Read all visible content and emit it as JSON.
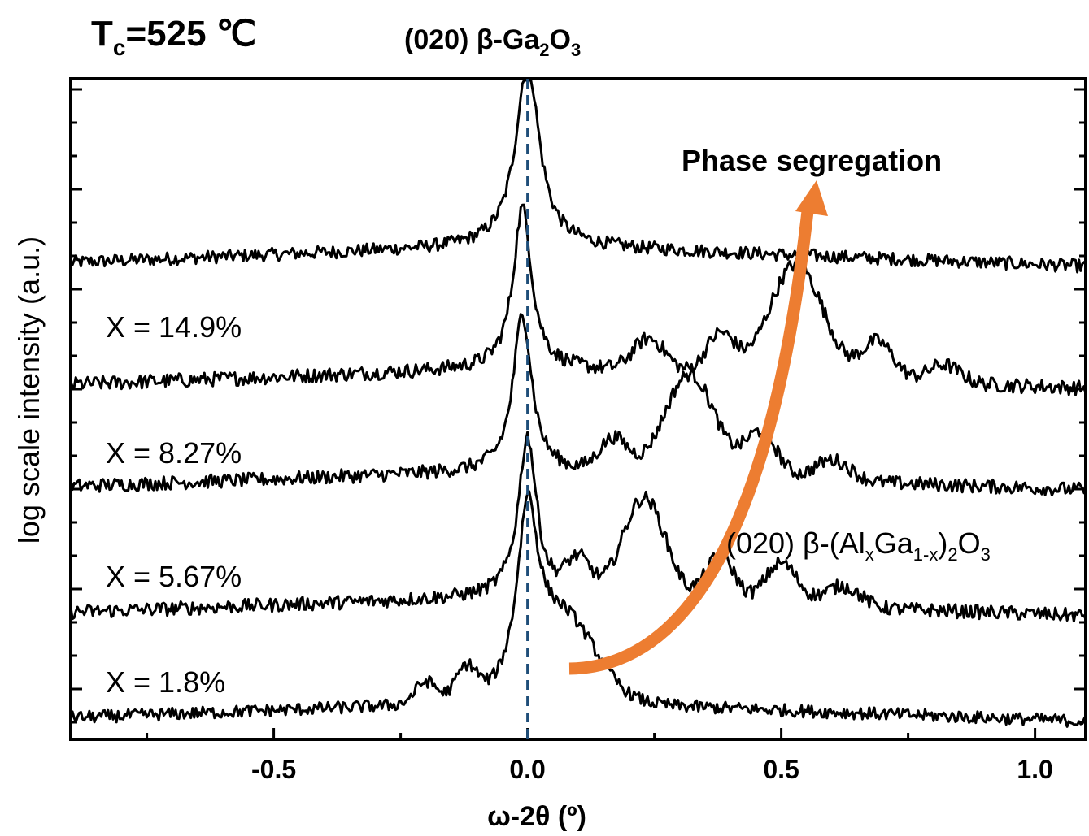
{
  "header": {
    "tc_label": "T",
    "tc_sub": "c",
    "tc_value": "=525 ℃",
    "ref_prefix": "(020) β-Ga",
    "ref_sub1": "2",
    "ref_mid": "O",
    "ref_sub2": "3"
  },
  "annotation": {
    "arrow_label": "Phase segregation",
    "arrow_color": "#ED7D31",
    "film_prefix": "(020) β-(Al",
    "film_sub1": "x",
    "film_mid1": "Ga",
    "film_sub2": "1-x",
    "film_mid2": ")",
    "film_sub3": "2",
    "film_mid3": "O",
    "film_sub4": "3"
  },
  "chart_data": {
    "type": "line",
    "xlabel": "ω-2θ (º)",
    "ylabel": "log scale intensity (a.u.)",
    "xlim": [
      -0.9,
      1.1
    ],
    "x_ticks": [
      -0.5,
      0.0,
      0.5,
      1.0
    ],
    "x_tick_labels": [
      "-0.5",
      "0.0",
      "0.5",
      "1.0"
    ],
    "reference_line_x": 0.0,
    "reference_line_color": "#1F4E79",
    "series": [
      {
        "name": "",
        "peaks": [
          {
            "x": 0.0,
            "height": 0.98,
            "width": 0.028
          }
        ],
        "fringes": [],
        "baseline": 0.0,
        "noise": 0.035
      },
      {
        "name": "X = 14.9%",
        "peaks": [
          {
            "x": -0.01,
            "height": 0.88,
            "width": 0.022
          }
        ],
        "fringes": [
          {
            "x": 0.24,
            "height": 0.18,
            "width": 0.045
          },
          {
            "x": 0.38,
            "height": 0.22,
            "width": 0.04
          },
          {
            "x": 0.53,
            "height": 0.62,
            "width": 0.075
          },
          {
            "x": 0.69,
            "height": 0.21,
            "width": 0.045
          },
          {
            "x": 0.82,
            "height": 0.1,
            "width": 0.045
          }
        ],
        "baseline": 0.0,
        "noise": 0.04
      },
      {
        "name": "X = 8.27%",
        "peaks": [
          {
            "x": -0.01,
            "height": 0.9,
            "width": 0.022
          }
        ],
        "fringes": [
          {
            "x": 0.17,
            "height": 0.19,
            "width": 0.04
          },
          {
            "x": 0.32,
            "height": 0.58,
            "width": 0.07
          },
          {
            "x": 0.46,
            "height": 0.26,
            "width": 0.045
          },
          {
            "x": 0.6,
            "height": 0.12,
            "width": 0.05
          }
        ],
        "baseline": 0.0,
        "noise": 0.04
      },
      {
        "name": "X = 5.67%",
        "peaks": [
          {
            "x": 0.0,
            "height": 0.92,
            "width": 0.022
          }
        ],
        "fringes": [
          {
            "x": 0.1,
            "height": 0.2,
            "width": 0.035
          },
          {
            "x": 0.23,
            "height": 0.58,
            "width": 0.06
          },
          {
            "x": 0.38,
            "height": 0.27,
            "width": 0.04
          },
          {
            "x": 0.5,
            "height": 0.24,
            "width": 0.045
          },
          {
            "x": 0.62,
            "height": 0.12,
            "width": 0.05
          }
        ],
        "baseline": 0.0,
        "noise": 0.04
      },
      {
        "name": "X = 1.8%",
        "peaks": [
          {
            "x": 0.0,
            "height": 0.92,
            "width": 0.024
          }
        ],
        "fringes": [
          {
            "x": 0.07,
            "height": 0.45,
            "width": 0.09
          },
          {
            "x": -0.12,
            "height": 0.18,
            "width": 0.03
          },
          {
            "x": -0.2,
            "height": 0.12,
            "width": 0.03
          }
        ],
        "baseline": 0.0,
        "noise": 0.035
      }
    ]
  }
}
